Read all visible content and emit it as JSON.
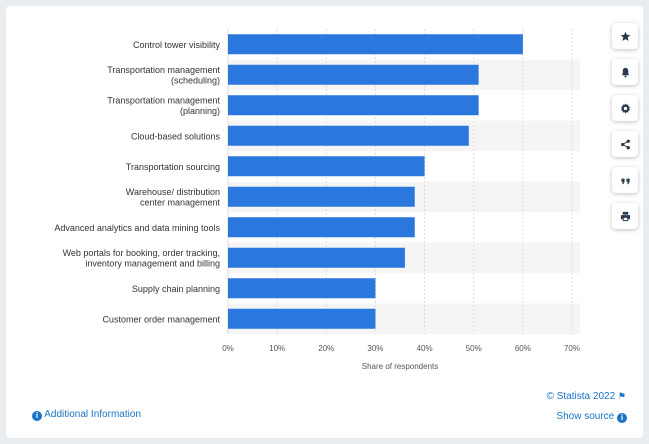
{
  "chart_data": {
    "type": "bar",
    "orientation": "horizontal",
    "categories": [
      [
        "Control tower visibility"
      ],
      [
        "Transportation management",
        "(scheduling)"
      ],
      [
        "Transportation management",
        "(planning)"
      ],
      [
        "Cloud-based solutions"
      ],
      [
        "Transportation sourcing"
      ],
      [
        "Warehouse/ distribution",
        "center management"
      ],
      [
        "Advanced analytics and data mining tools"
      ],
      [
        "Web portals for booking, order tracking,",
        "inventory management and billing"
      ],
      [
        "Supply chain planning"
      ],
      [
        "Customer order management"
      ]
    ],
    "values": [
      60,
      51,
      51,
      49,
      40,
      38,
      38,
      36,
      30,
      30
    ],
    "xlabel": "Share of respondents",
    "xlim": [
      0,
      70
    ],
    "xticks": [
      "0%",
      "10%",
      "20%",
      "30%",
      "40%",
      "50%",
      "60%",
      "70%"
    ],
    "grid": "vertical gridlines, alternating row bands",
    "bar_color": "#2a77dd"
  },
  "toolbar": [
    {
      "name": "star-icon"
    },
    {
      "name": "bell-icon"
    },
    {
      "name": "gear-icon"
    },
    {
      "name": "share-icon"
    },
    {
      "name": "quote-icon"
    },
    {
      "name": "print-icon"
    }
  ],
  "footer": {
    "additional_info": "Additional Information",
    "copyright": "© Statista 2022",
    "show_source": "Show source"
  },
  "colors": {
    "link": "#1a73c7",
    "band": "#f5f5f5",
    "grid": "#dcdcdc"
  }
}
